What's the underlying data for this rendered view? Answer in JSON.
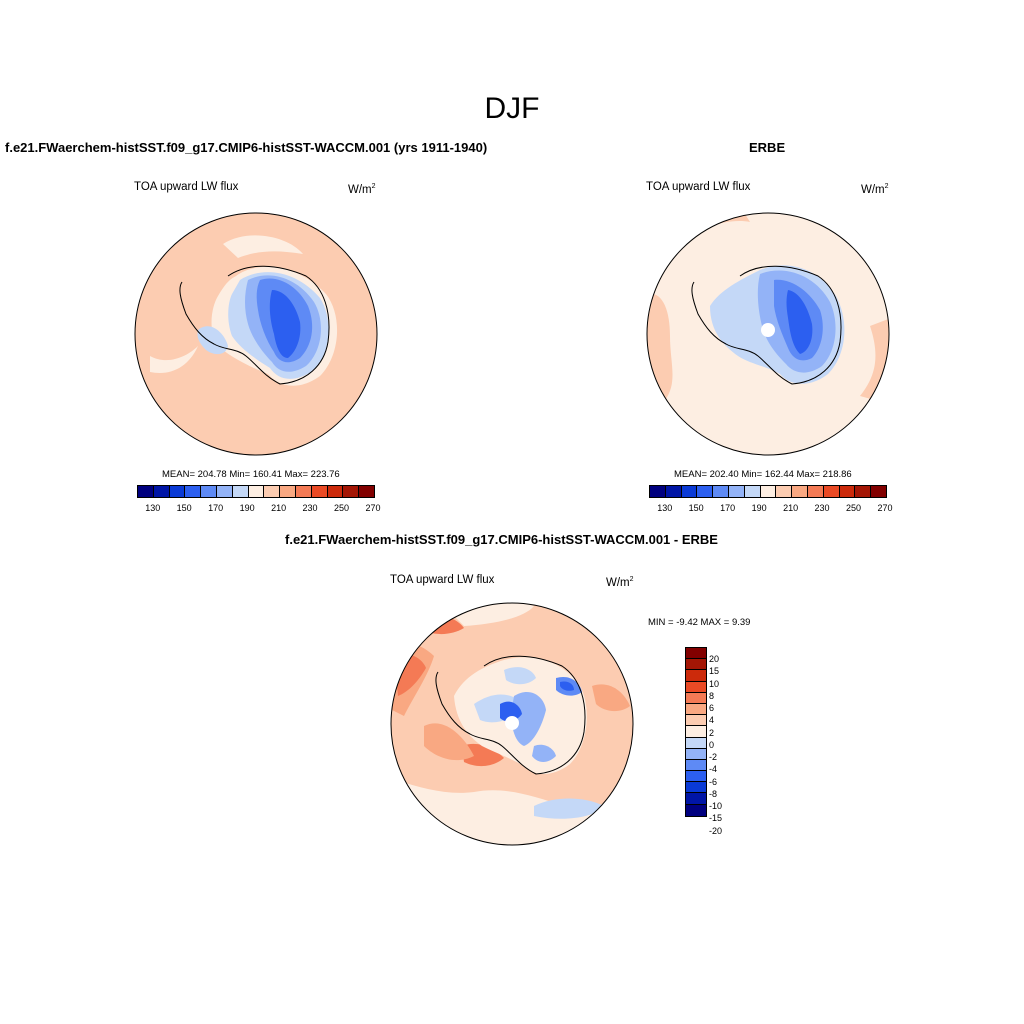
{
  "season": "DJF",
  "panels": [
    {
      "title": "f.e21.FWaerchem-histSST.f09_g17.CMIP6-histSST-WACCM.001 (yrs 1911-1940)",
      "field": "TOA upward LW flux",
      "units_base": "W/m",
      "units_exp": "2",
      "stats": "MEAN= 204.78  Min= 160.41  Max= 223.76"
    },
    {
      "title": "ERBE",
      "field": "TOA upward LW flux",
      "units_base": "W/m",
      "units_exp": "2",
      "stats": "MEAN= 202.40  Min= 162.44  Max= 218.86"
    },
    {
      "title": "f.e21.FWaerchem-histSST.f09_g17.CMIP6-histSST-WACCM.001 - ERBE",
      "field": "TOA upward LW flux",
      "units_base": "W/m",
      "units_exp": "2",
      "stats": "MIN =  -9.42 MAX =   9.39"
    }
  ],
  "colorbar_abs": {
    "labels": [
      "130",
      "150",
      "170",
      "190",
      "210",
      "230",
      "250",
      "270"
    ],
    "colors": [
      "#00007f",
      "#0015a6",
      "#0a3ad6",
      "#2c5ff0",
      "#5e8af5",
      "#93b3f7",
      "#c4d8f7",
      "#fdeee2",
      "#fcccb1",
      "#f9a882",
      "#f47a55",
      "#ea4a25",
      "#cc2a0b",
      "#a41605",
      "#820000"
    ]
  },
  "colorbar_diff": {
    "labels": [
      "20",
      "15",
      "10",
      "8",
      "6",
      "4",
      "2",
      "0",
      "-2",
      "-4",
      "-6",
      "-8",
      "-10",
      "-15",
      "-20"
    ],
    "colors": [
      "#820000",
      "#a41605",
      "#cc2a0b",
      "#ea4a25",
      "#f47a55",
      "#f9a882",
      "#fcccb1",
      "#fdeee2",
      "#c4d8f7",
      "#93b3f7",
      "#5e8af5",
      "#2c5ff0",
      "#0a3ad6",
      "#0015a6",
      "#00007f"
    ]
  }
}
